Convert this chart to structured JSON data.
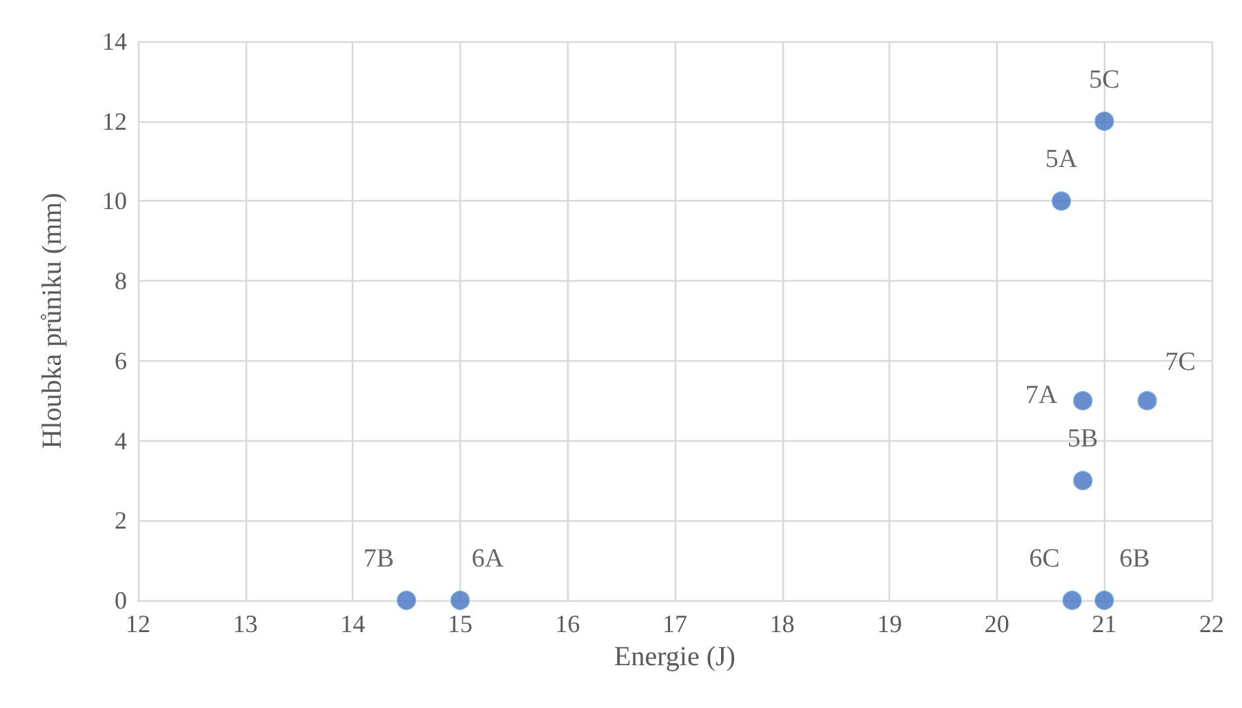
{
  "chart_data": {
    "type": "scatter",
    "xlabel": "Energie (J)",
    "ylabel": "Hloubka průniku (mm)",
    "x": [
      20.6,
      20.8,
      21.0,
      15.0,
      21.0,
      20.7,
      20.8,
      14.5,
      21.4
    ],
    "series": [
      {
        "color": "#4472c4",
        "values": [
          10,
          3,
          12,
          0,
          0,
          0,
          5,
          0,
          5
        ]
      }
    ],
    "annotations": [
      {
        "text": "5A",
        "x": 20.6,
        "y": 10
      },
      {
        "text": "5B",
        "x": 20.8,
        "y": 3
      },
      {
        "text": "5C",
        "x": 21.0,
        "y": 12
      },
      {
        "text": "6A",
        "x": 15.0,
        "y": 0
      },
      {
        "text": "6B",
        "x": 21.0,
        "y": 0
      },
      {
        "text": "6C",
        "x": 20.7,
        "y": 0
      },
      {
        "text": "7A",
        "x": 20.8,
        "y": 5
      },
      {
        "text": "7B",
        "x": 14.5,
        "y": 0
      },
      {
        "text": "7C",
        "x": 21.4,
        "y": 5
      }
    ],
    "xlim": [
      12,
      22
    ],
    "xticks": [
      12,
      13,
      14,
      15,
      16,
      17,
      18,
      19,
      20,
      21,
      22
    ],
    "ylim": [
      0,
      14
    ],
    "yticks": [
      0,
      2,
      4,
      6,
      8,
      10,
      12,
      14
    ],
    "grid": true,
    "marker": "circle"
  }
}
